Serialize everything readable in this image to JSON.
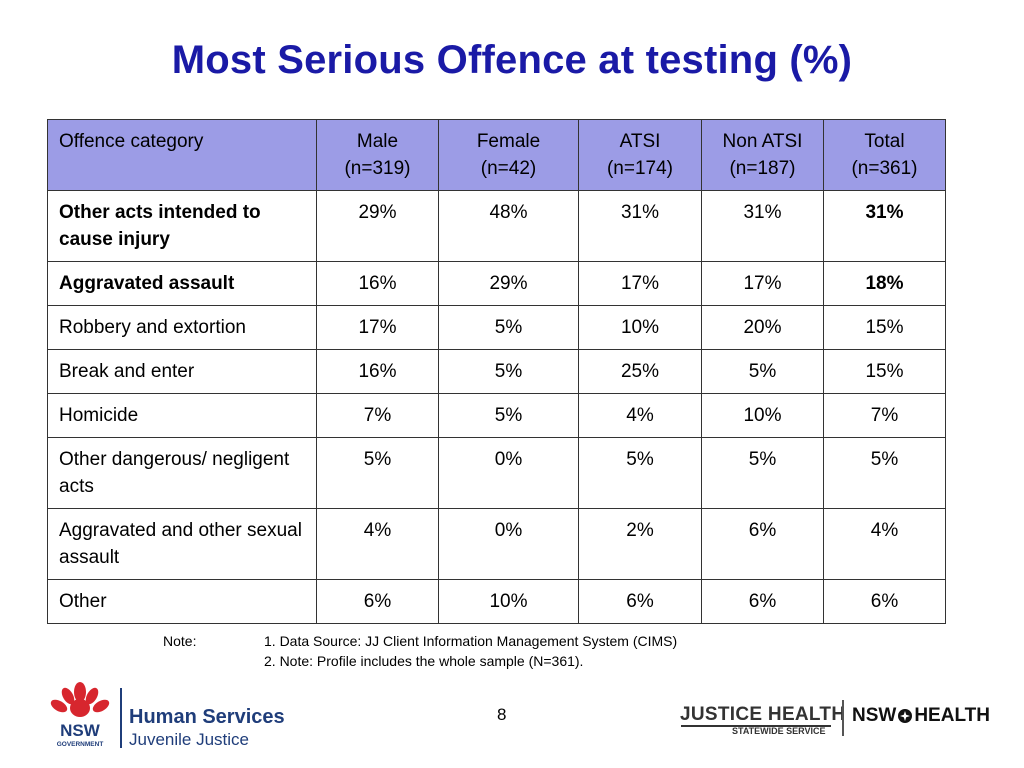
{
  "title": "Most Serious Offence at testing (%)",
  "table": {
    "headers": [
      {
        "line1": "Offence category",
        "line2": ""
      },
      {
        "line1": "Male",
        "line2": "(n=319)"
      },
      {
        "line1": "Female",
        "line2": "(n=42)"
      },
      {
        "line1": "ATSI",
        "line2": "(n=174)"
      },
      {
        "line1": "Non ATSI",
        "line2": "(n=187)"
      },
      {
        "line1": "Total",
        "line2": "(n=361)"
      }
    ],
    "rows": [
      {
        "category": "Other acts intended to cause injury",
        "bold_category": true,
        "values": [
          "29%",
          "48%",
          "31%",
          "31%",
          "31%"
        ],
        "bold_total": true
      },
      {
        "category": "Aggravated assault",
        "bold_category": true,
        "values": [
          "16%",
          "29%",
          "17%",
          "17%",
          "18%"
        ],
        "bold_total": true
      },
      {
        "category": "Robbery and extortion",
        "bold_category": false,
        "values": [
          "17%",
          "5%",
          "10%",
          "20%",
          "15%"
        ],
        "bold_total": false
      },
      {
        "category": "Break and enter",
        "bold_category": false,
        "values": [
          "16%",
          "5%",
          "25%",
          "5%",
          "15%"
        ],
        "bold_total": false
      },
      {
        "category": "Homicide",
        "bold_category": false,
        "values": [
          "7%",
          "5%",
          "4%",
          "10%",
          "7%"
        ],
        "bold_total": false
      },
      {
        "category": "Other dangerous/ negligent acts",
        "bold_category": false,
        "values": [
          "5%",
          "0%",
          "5%",
          "5%",
          "5%"
        ],
        "bold_total": false
      },
      {
        "category": "Aggravated and other sexual assault",
        "bold_category": false,
        "values": [
          "4%",
          "0%",
          "2%",
          "6%",
          "4%"
        ],
        "bold_total": false
      },
      {
        "category": "Other",
        "bold_category": false,
        "values": [
          "6%",
          "10%",
          "6%",
          "6%",
          "6%"
        ],
        "bold_total": false
      }
    ]
  },
  "note": {
    "label": "Note:",
    "lines": [
      "1. Data Source: JJ Client Information Management System (CIMS)",
      "2. Note:  Profile includes the whole sample (N=361)."
    ]
  },
  "page_number": "8",
  "logos": {
    "nsw_text": "NSW",
    "nsw_sub": "GOVERNMENT",
    "human_services": "Human Services",
    "juvenile_justice": "Juvenile Justice",
    "justice_health": "JUSTICE HEALTH",
    "statewide_service": "STATEWIDE SERVICE",
    "nsw_health_left": "NSW",
    "nsw_health_right": "HEALTH"
  },
  "colors": {
    "title": "#1a1aa6",
    "header_fill": "#9c9ce6",
    "waratah_red": "#d7262e",
    "nsw_blue": "#1f3d7a"
  }
}
